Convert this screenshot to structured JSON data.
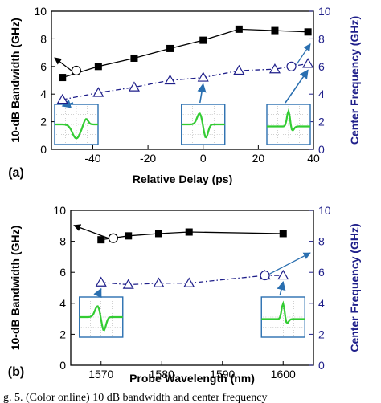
{
  "chart_data": [
    {
      "type": "line",
      "panel_label": "(a)",
      "xlabel": "Relative Delay (ps)",
      "ylabel": "10-dB Bandwidth (GHz)",
      "y2label": "Center Frequency (GHz)",
      "xlim": [
        -55,
        40
      ],
      "ylim": [
        0,
        10
      ],
      "y2lim": [
        0,
        10
      ],
      "xticks": [
        -40,
        -20,
        0,
        20,
        40
      ],
      "yticks": [
        0,
        2,
        4,
        6,
        8,
        10
      ],
      "y2ticks": [
        0,
        2,
        4,
        6,
        8,
        10
      ],
      "xtick_labels": [
        "-40",
        "-20",
        "0",
        "20",
        "40"
      ],
      "ytick_labels": [
        "0",
        "2",
        "4",
        "6",
        "8",
        "10"
      ],
      "y2tick_labels": [
        "0",
        "2",
        "4",
        "6",
        "8",
        "10"
      ],
      "series": [
        {
          "axis": "left",
          "marker": "filled-square",
          "line": "solid",
          "color": "#000000",
          "x": [
            -51,
            -38,
            -25,
            -12,
            0,
            13,
            26,
            38
          ],
          "values": [
            5.2,
            6.0,
            6.6,
            7.3,
            7.9,
            8.7,
            8.6,
            8.5
          ]
        },
        {
          "axis": "right",
          "marker": "open-triangle",
          "line": "dash-dot",
          "color": "#1f1f8a",
          "x": [
            -51,
            -38,
            -25,
            -12,
            0,
            13,
            26,
            38
          ],
          "values": [
            3.6,
            4.1,
            4.5,
            5.0,
            5.2,
            5.7,
            5.8,
            6.2
          ]
        }
      ],
      "annotation_circles": [
        {
          "x": -46,
          "y": 5.7,
          "axis": "left",
          "arrow_to": "left"
        },
        {
          "x": 32,
          "y": 6.0,
          "axis": "right",
          "arrow_to": "right"
        }
      ],
      "insets": [
        {
          "at_x": -51,
          "pulse": "dip"
        },
        {
          "at_x": 0,
          "pulse": "dip-peak"
        },
        {
          "at_x": 38,
          "pulse": "narrow-peak"
        }
      ]
    },
    {
      "type": "line",
      "panel_label": "(b)",
      "xlabel": "Probe Wavelength (nm)",
      "ylabel": "10-dB Bandwidth (GHz)",
      "y2label": "Center Frequency (GHz)",
      "xlim": [
        1565,
        1605
      ],
      "ylim": [
        0,
        10
      ],
      "y2lim": [
        0,
        10
      ],
      "xticks": [
        1570,
        1580,
        1590,
        1600
      ],
      "yticks": [
        0,
        2,
        4,
        6,
        8,
        10
      ],
      "y2ticks": [
        0,
        2,
        4,
        6,
        8,
        10
      ],
      "xtick_labels": [
        "1570",
        "1580",
        "1590",
        "1600"
      ],
      "ytick_labels": [
        "0",
        "2",
        "4",
        "6",
        "8",
        "10"
      ],
      "y2tick_labels": [
        "0",
        "2",
        "4",
        "6",
        "8",
        "10"
      ],
      "series": [
        {
          "axis": "left",
          "marker": "filled-square",
          "line": "solid",
          "color": "#000000",
          "x": [
            1570,
            1574.5,
            1579.5,
            1584.5,
            1600
          ],
          "values": [
            8.1,
            8.35,
            8.5,
            8.6,
            8.5
          ]
        },
        {
          "axis": "right",
          "marker": "open-triangle",
          "line": "dash-dot",
          "color": "#1f1f8a",
          "x": [
            1570,
            1574.5,
            1579.5,
            1584.5,
            1597,
            1600
          ],
          "values": [
            5.35,
            5.2,
            5.3,
            5.3,
            5.8,
            5.8
          ]
        }
      ],
      "annotation_circles": [
        {
          "x": 1572,
          "y": 8.2,
          "axis": "left",
          "arrow_to": "left"
        },
        {
          "x": 1597,
          "y": 5.8,
          "axis": "right",
          "arrow_to": "right"
        }
      ],
      "insets": [
        {
          "at_x": 1570,
          "pulse": "dip-peak"
        },
        {
          "at_x": 1600,
          "pulse": "narrow-peak"
        }
      ]
    }
  ],
  "caption": "g. 5.     (Color online) 10 dB bandwidth and center frequency",
  "colors": {
    "left_axis": "#000000",
    "right_axis": "#1f1f8a",
    "inset_trace": "#33cc33",
    "inset_grid": "#888888",
    "arrow": "#2a6fb0"
  }
}
